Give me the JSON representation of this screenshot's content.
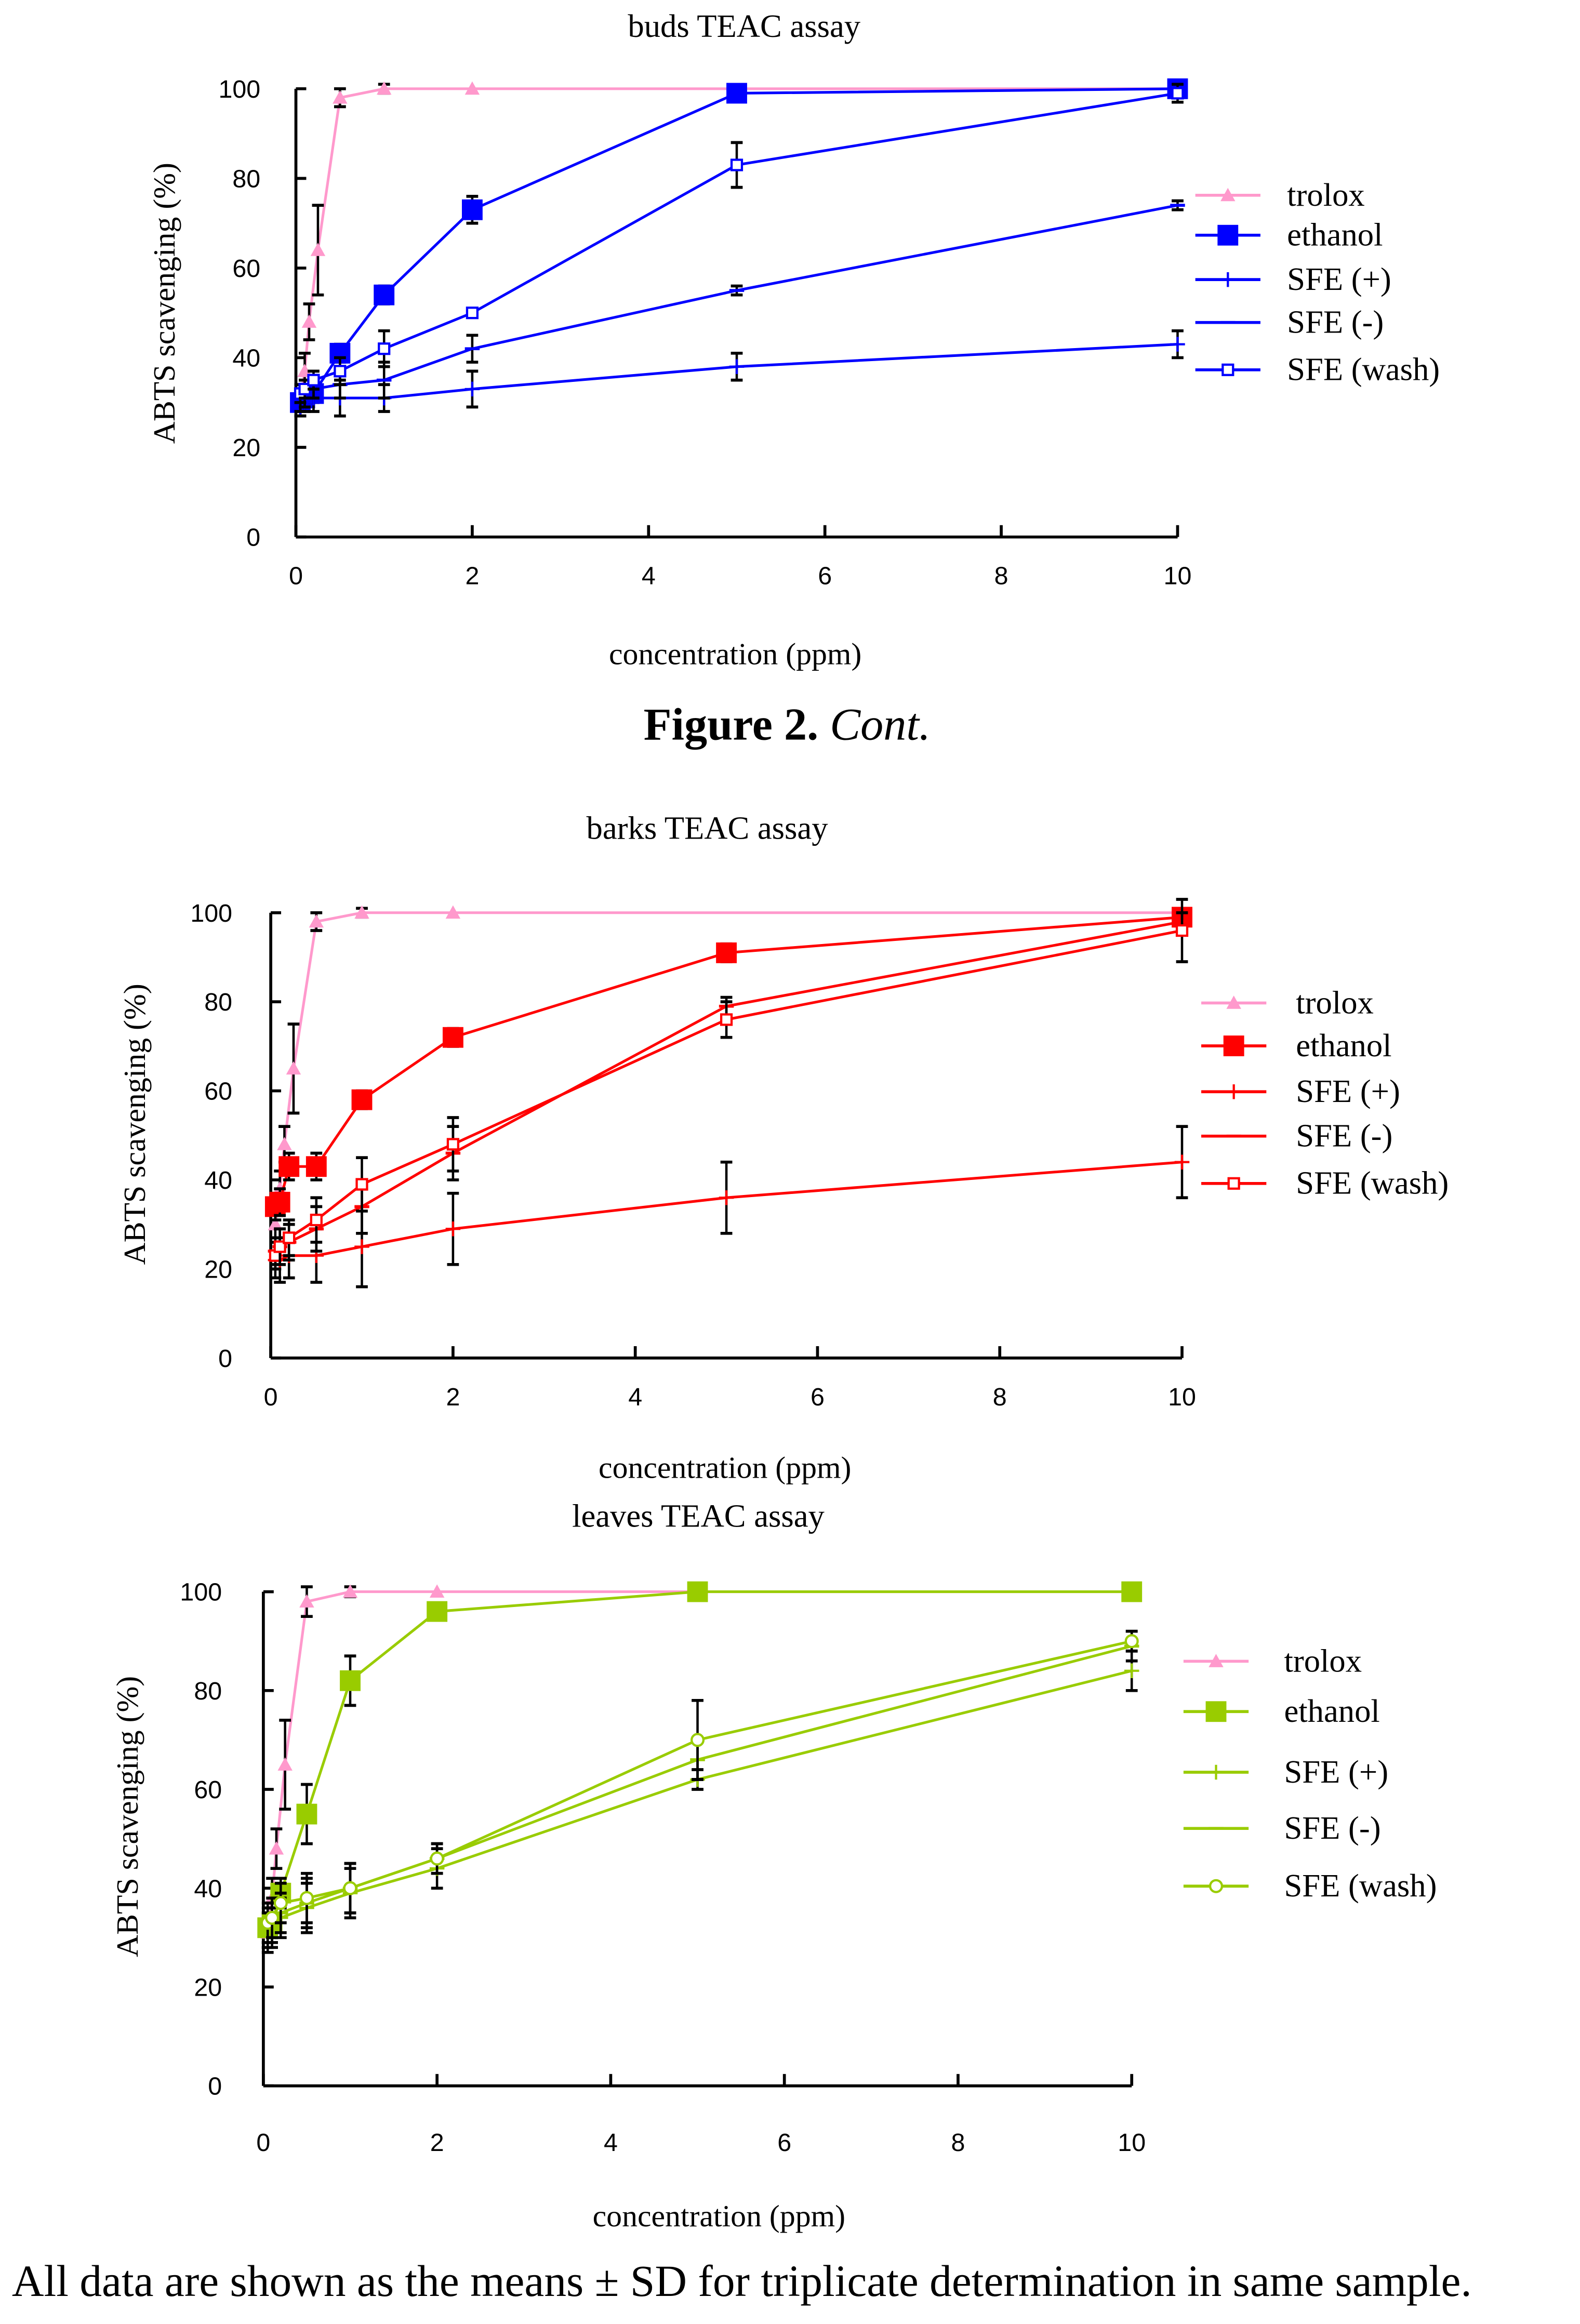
{
  "caption": {
    "bold": "Figure 2.",
    "italic": "Cont."
  },
  "footnote": "All data are shown as the means ± SD for triplicate determination in same sample.",
  "colors": {
    "trolox": "#ff99cc",
    "buds": "#0000ff",
    "barks": "#ff0000",
    "leaves": "#99cc00",
    "errorbar": "#000000"
  },
  "chart_data": [
    {
      "type": "line",
      "title": "buds TEAC assay",
      "xlabel": "concentration (ppm)",
      "ylabel": "ABTS scavenging (%)",
      "xlim": [
        0,
        10
      ],
      "ylim": [
        0,
        100
      ],
      "xticks": [
        "0",
        "2",
        "4",
        "6",
        "8",
        "10"
      ],
      "yticks": [
        "0",
        "20",
        "40",
        "60",
        "80",
        "100"
      ],
      "legend_position": "right",
      "series": [
        {
          "name": "trolox",
          "marker": "triangle",
          "x": [
            0.05,
            0.1,
            0.15,
            0.25,
            0.5,
            1,
            2,
            10
          ],
          "values": [
            30,
            37,
            48,
            64,
            98,
            100,
            100,
            100
          ],
          "sd": [
            3,
            4,
            4,
            10,
            2,
            1,
            0,
            0
          ]
        },
        {
          "name": "ethanol",
          "marker": "square",
          "x": [
            0.05,
            0.1,
            0.2,
            0.5,
            1,
            2,
            5,
            10
          ],
          "values": [
            30,
            31,
            32,
            41,
            54,
            73,
            99,
            100
          ],
          "sd": [
            2,
            2,
            2,
            2,
            2,
            3,
            1,
            1
          ]
        },
        {
          "name": "SFE (+)",
          "marker": "plus",
          "x": [
            0.05,
            0.1,
            0.2,
            0.5,
            1,
            2,
            5,
            10
          ],
          "values": [
            29,
            30,
            31,
            31,
            31,
            33,
            38,
            43
          ],
          "sd": [
            2,
            2,
            3,
            4,
            3,
            4,
            3,
            3
          ]
        },
        {
          "name": "SFE (-)",
          "marker": "dash",
          "x": [
            0.05,
            0.1,
            0.2,
            0.5,
            1,
            2,
            5,
            10
          ],
          "values": [
            30,
            31,
            33,
            34,
            35,
            42,
            55,
            74
          ],
          "sd": [
            2,
            2,
            2,
            3,
            4,
            3,
            1,
            1
          ]
        },
        {
          "name": "SFE  (wash)",
          "marker": "opensquare",
          "x": [
            0.05,
            0.1,
            0.2,
            0.5,
            1,
            2,
            5,
            10
          ],
          "values": [
            32,
            33,
            35,
            37,
            42,
            50,
            83,
            99
          ],
          "sd": [
            2,
            2,
            2,
            3,
            4,
            1,
            5,
            2
          ]
        }
      ]
    },
    {
      "type": "line",
      "title": "barks TEAC assay",
      "xlabel": "concentration (ppm)",
      "ylabel": "ABTS scavenging (%)",
      "xlim": [
        0,
        10
      ],
      "ylim": [
        0,
        100
      ],
      "xticks": [
        "0",
        "2",
        "4",
        "6",
        "8",
        "10"
      ],
      "yticks": [
        "0",
        "20",
        "40",
        "60",
        "80",
        "100"
      ],
      "legend_position": "right",
      "series": [
        {
          "name": "trolox",
          "marker": "triangle",
          "x": [
            0.05,
            0.1,
            0.15,
            0.25,
            0.5,
            1,
            2,
            10
          ],
          "values": [
            30,
            38,
            48,
            65,
            98,
            100,
            100,
            100
          ],
          "sd": [
            3,
            4,
            4,
            10,
            2,
            1,
            0,
            0
          ]
        },
        {
          "name": "ethanol",
          "marker": "square",
          "x": [
            0.05,
            0.1,
            0.2,
            0.5,
            1,
            2,
            5,
            10
          ],
          "values": [
            34,
            35,
            43,
            43,
            58,
            72,
            91,
            99
          ],
          "sd": [
            3,
            3,
            3,
            3,
            2,
            2,
            2,
            1
          ]
        },
        {
          "name": "SFE (+)",
          "marker": "plus",
          "x": [
            0.05,
            0.1,
            0.2,
            0.5,
            1,
            2,
            5,
            10
          ],
          "values": [
            22,
            22,
            23,
            23,
            25,
            29,
            36,
            44
          ],
          "sd": [
            4,
            5,
            5,
            6,
            9,
            8,
            8,
            8
          ]
        },
        {
          "name": "SFE (-)",
          "marker": "dash",
          "x": [
            0.05,
            0.1,
            0.2,
            0.5,
            1,
            2,
            5,
            10
          ],
          "values": [
            24,
            25,
            26,
            29,
            34,
            46,
            79,
            98
          ],
          "sd": [
            3,
            4,
            4,
            5,
            6,
            6,
            2,
            2
          ]
        },
        {
          "name": "SFE (wash)",
          "marker": "opensquare",
          "x": [
            0.05,
            0.1,
            0.2,
            0.5,
            1,
            2,
            5,
            10
          ],
          "values": [
            23,
            25,
            27,
            31,
            39,
            48,
            76,
            96
          ],
          "sd": [
            3,
            4,
            4,
            5,
            6,
            6,
            4,
            7
          ]
        }
      ]
    },
    {
      "type": "line",
      "title": "leaves TEAC assay",
      "xlabel": "concentration (ppm)",
      "ylabel": "ABTS scavenging (%)",
      "xlim": [
        0,
        10
      ],
      "ylim": [
        0,
        100
      ],
      "xticks": [
        "0",
        "2",
        "4",
        "6",
        "8",
        "10"
      ],
      "yticks": [
        "0",
        "20",
        "40",
        "60",
        "80",
        "100"
      ],
      "legend_position": "right",
      "series": [
        {
          "name": "trolox",
          "marker": "triangle",
          "x": [
            0.05,
            0.1,
            0.15,
            0.25,
            0.5,
            1,
            2,
            10
          ],
          "values": [
            31,
            38,
            48,
            65,
            98,
            100,
            100,
            100
          ],
          "sd": [
            3,
            4,
            4,
            9,
            3,
            1,
            0,
            0
          ]
        },
        {
          "name": "ethanol",
          "marker": "square",
          "x": [
            0.05,
            0.1,
            0.2,
            0.5,
            1,
            2,
            5,
            10
          ],
          "values": [
            32,
            33,
            39,
            55,
            82,
            96,
            100,
            100
          ],
          "sd": [
            3,
            3,
            3,
            6,
            5,
            1,
            1,
            1
          ]
        },
        {
          "name": "SFE (+)",
          "marker": "plus",
          "x": [
            0.05,
            0.1,
            0.2,
            0.5,
            1,
            2,
            5,
            10
          ],
          "values": [
            31,
            32,
            34,
            36,
            39,
            44,
            62,
            84
          ],
          "sd": [
            4,
            4,
            4,
            5,
            5,
            4,
            2,
            4
          ]
        },
        {
          "name": "SFE (-)",
          "marker": "dash",
          "x": [
            0.05,
            0.1,
            0.2,
            0.5,
            1,
            2,
            5,
            10
          ],
          "values": [
            32,
            33,
            35,
            37,
            40,
            46,
            66,
            89
          ],
          "sd": [
            4,
            4,
            4,
            5,
            5,
            3,
            4,
            3
          ]
        },
        {
          "name": "SFE (wash)",
          "marker": "opencircle",
          "x": [
            0.05,
            0.1,
            0.2,
            0.5,
            1,
            2,
            5,
            10
          ],
          "values": [
            33,
            34,
            37,
            38,
            40,
            46,
            70,
            90
          ],
          "sd": [
            4,
            4,
            4,
            5,
            5,
            3,
            8,
            2
          ]
        }
      ]
    }
  ]
}
